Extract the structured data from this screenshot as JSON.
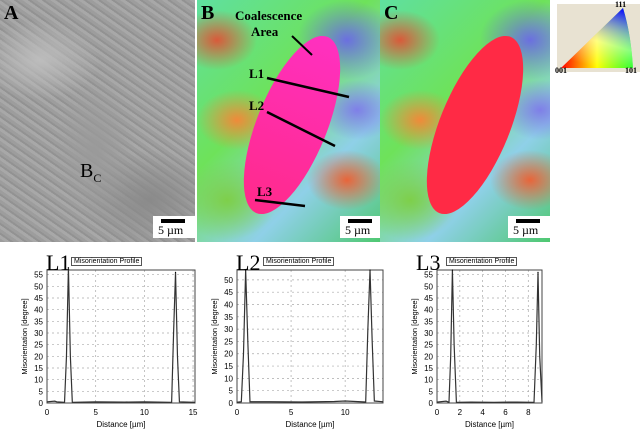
{
  "panels": {
    "a": {
      "label": "A",
      "annotation": "B",
      "annotation_sub": "C",
      "scale": "5 µm"
    },
    "b": {
      "label": "B",
      "coalescence": "Coalescence",
      "area": "Area",
      "lines": [
        "L1",
        "L2",
        "L3"
      ],
      "scale": "5 µm"
    },
    "c": {
      "label": "C",
      "scale": "5 µm"
    }
  },
  "legend": {
    "v111": "111",
    "v001": "001",
    "v101": "101"
  },
  "colors": {
    "red": "#ff2020",
    "magenta": "#ff2090",
    "plot_line": "#333333"
  },
  "chart_data": [
    {
      "type": "line",
      "name": "L1",
      "box_title": "Misorientation Profile",
      "xlabel": "Distance [µm]",
      "ylabel": "Misorientation [degree]",
      "xlim": [
        0,
        15.2
      ],
      "ylim": [
        0,
        57
      ],
      "xticks": [
        0,
        5,
        10,
        15
      ],
      "yticks": [
        0,
        5,
        10,
        15,
        20,
        25,
        30,
        35,
        40,
        45,
        50,
        55
      ],
      "grid": true,
      "x": [
        0,
        0.8,
        1.0,
        1.8,
        2.0,
        2.2,
        2.4,
        2.6,
        5,
        8,
        10,
        12.8,
        13.0,
        13.2,
        13.4,
        13.6,
        15.2
      ],
      "y": [
        0.5,
        0.8,
        0.5,
        0.3,
        20,
        58,
        20,
        0.3,
        0.5,
        0.4,
        0.5,
        0.3,
        30,
        56,
        20,
        0.5,
        0.3
      ]
    },
    {
      "type": "line",
      "name": "L2",
      "box_title": "Misorientation Profile",
      "xlabel": "Distance [µm]",
      "ylabel": "Misorientation [degree]",
      "xlim": [
        0,
        13.5
      ],
      "ylim": [
        0,
        54
      ],
      "xticks": [
        0,
        5,
        10
      ],
      "yticks": [
        0,
        5,
        10,
        15,
        20,
        25,
        30,
        35,
        40,
        45,
        50
      ],
      "grid": true,
      "x": [
        0,
        0.4,
        0.6,
        0.8,
        1.0,
        1.2,
        3,
        6,
        9,
        10,
        11.9,
        12.1,
        12.3,
        12.5,
        12.7,
        13.5
      ],
      "y": [
        0.3,
        0.5,
        20,
        54,
        25,
        0.5,
        0.5,
        0.4,
        0.6,
        0.8,
        0.4,
        30,
        54,
        25,
        0.8,
        0.5
      ]
    },
    {
      "type": "line",
      "name": "L3",
      "box_title": "Misorientation Profile",
      "xlabel": "Distance [µm]",
      "ylabel": "Misorientation [degree]",
      "xlim": [
        0,
        9.2
      ],
      "ylim": [
        0,
        57
      ],
      "xticks": [
        0,
        2,
        4,
        6,
        8
      ],
      "yticks": [
        0,
        5,
        10,
        15,
        20,
        25,
        30,
        35,
        40,
        45,
        50,
        55
      ],
      "grid": true,
      "x": [
        0,
        0.8,
        1.05,
        1.2,
        1.35,
        1.5,
        1.7,
        3,
        5,
        7,
        8.5,
        8.7,
        8.85,
        9.0,
        9.2
      ],
      "y": [
        0.4,
        0.8,
        0.3,
        20,
        57,
        25,
        0.3,
        0.4,
        0.3,
        0.4,
        0.3,
        25,
        56,
        20,
        0.5
      ]
    }
  ]
}
